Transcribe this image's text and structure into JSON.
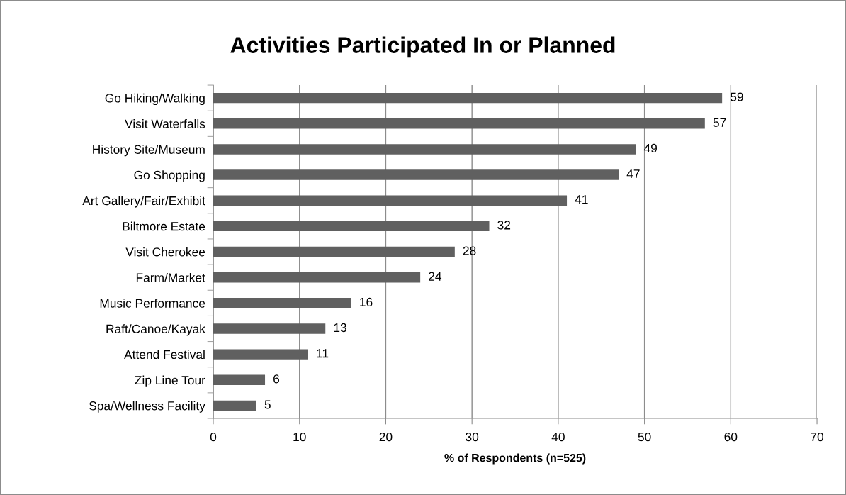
{
  "chart_data": {
    "type": "bar",
    "orientation": "horizontal",
    "title": "Activities Participated In or Planned",
    "xlabel": "% of Respondents (n=525)",
    "categories": [
      "Go Hiking/Walking",
      "Visit Waterfalls",
      "History Site/Museum",
      "Go Shopping",
      "Art Gallery/Fair/Exhibit",
      "Biltmore Estate",
      "Visit Cherokee",
      "Farm/Market",
      "Music Performance",
      "Raft/Canoe/Kayak",
      "Attend Festival",
      "Zip Line Tour",
      "Spa/Wellness Facility"
    ],
    "values": [
      59,
      57,
      49,
      47,
      41,
      32,
      28,
      24,
      16,
      13,
      11,
      6,
      5
    ],
    "color": "#606060",
    "xlim": [
      0,
      70
    ],
    "xticks": [
      0,
      10,
      20,
      30,
      40,
      50,
      60,
      70
    ],
    "grid": "x",
    "data_labels": true
  }
}
